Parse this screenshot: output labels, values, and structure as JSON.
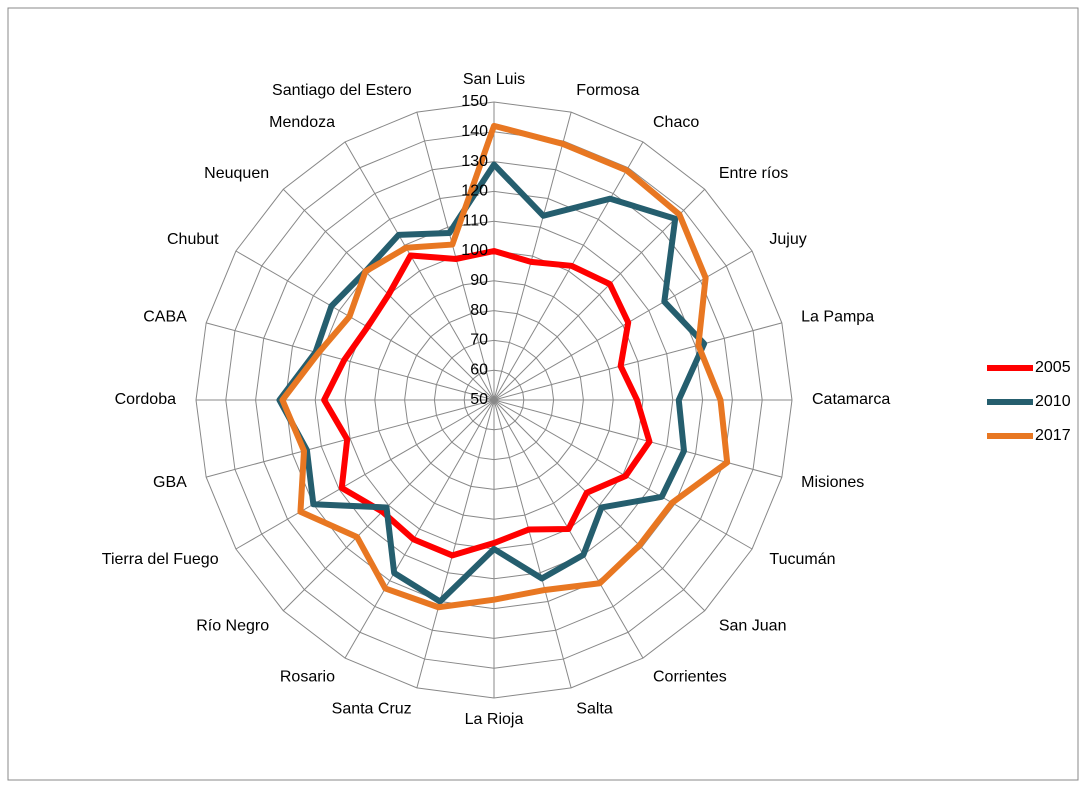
{
  "chart_data": {
    "type": "radar",
    "categories": [
      "San Luis",
      "Formosa",
      "Chaco",
      "Entre ríos",
      "Jujuy",
      "La Pampa",
      "Catamarca",
      "Misiones",
      "Tucumán",
      "San Juan",
      "Corrientes",
      "Salta",
      "La Rioja",
      "Santa Cruz",
      "Rosario",
      "Río Negro",
      "Tierra del Fuego",
      "GBA",
      "Cordoba",
      "CABA",
      "Chubut",
      "Neuquen",
      "Mendoza",
      "Santiago del Estero"
    ],
    "series": [
      {
        "name": "2005",
        "color": "#ff0000",
        "values": [
          100,
          98,
          102,
          105,
          102,
          94,
          98,
          104,
          101,
          94,
          100,
          95,
          98,
          104,
          104,
          103,
          109,
          101,
          107,
          102,
          99,
          100,
          106,
          99
        ]
      },
      {
        "name": "2010",
        "color": "#255e6e",
        "values": [
          129,
          114,
          128,
          136,
          116,
          123,
          112,
          116,
          115,
          101,
          110,
          112,
          100,
          120,
          117,
          101,
          120,
          115,
          122,
          112,
          113,
          111,
          114,
          108
        ]
      },
      {
        "name": "2017",
        "color": "#e87722",
        "values": [
          142,
          139,
          139,
          138,
          132,
          121,
          126,
          131,
          119,
          119,
          121,
          116,
          117,
          122,
          123,
          115,
          125,
          116,
          121,
          111,
          106,
          111,
          109,
          104
        ]
      }
    ],
    "ylim": [
      50,
      150
    ],
    "yticks": [
      50,
      60,
      70,
      80,
      90,
      100,
      110,
      120,
      130,
      140,
      150
    ],
    "grid": true,
    "legend": "right"
  }
}
